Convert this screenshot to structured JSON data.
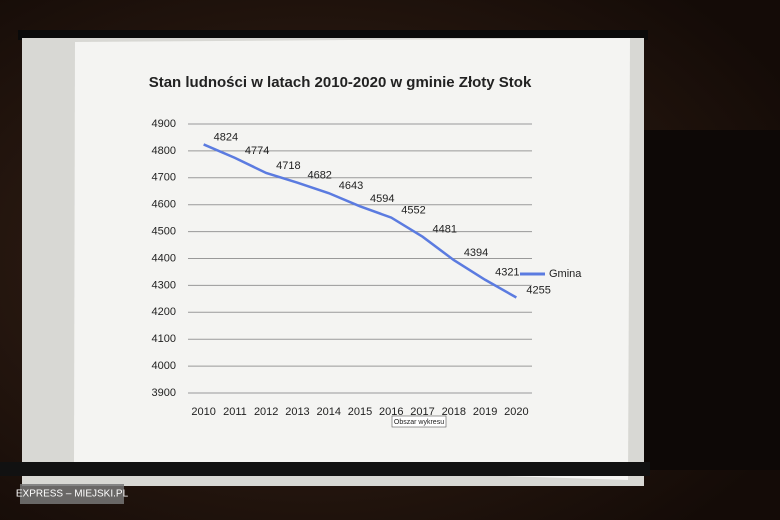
{
  "chart_data": {
    "type": "line",
    "title": "Stan ludności w latach 2010-2020 w gminie Złoty Stok",
    "categories": [
      "2010",
      "2011",
      "2012",
      "2013",
      "2014",
      "2015",
      "2016",
      "2017",
      "2018",
      "2019",
      "2020"
    ],
    "series": [
      {
        "name": "Gmina",
        "color": "#5b7be0",
        "values": [
          4824,
          4774,
          4718,
          4682,
          4643,
          4594,
          4552,
          4481,
          4394,
          4321,
          4255
        ]
      }
    ],
    "ylim": [
      3900,
      4900
    ],
    "yticks": [
      3900,
      4000,
      4100,
      4200,
      4300,
      4400,
      4500,
      4600,
      4700,
      4800,
      4900
    ],
    "grid": true,
    "legend": "right",
    "tooltip": "Obszar wykresu",
    "watermark": "EXPRESS – MIEJSKI.PL"
  }
}
